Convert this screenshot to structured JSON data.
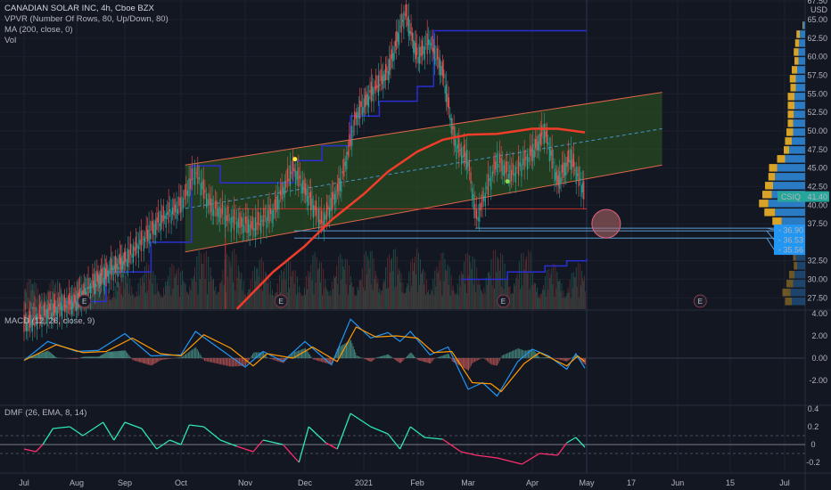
{
  "header": {
    "title": "CANADIAN SOLAR INC, 4h, Cboe BZX",
    "indicators": [
      "VPVR (Number Of Rows, 80, Up/Down, 80)",
      "MA (200, close, 0)",
      "Vol"
    ]
  },
  "colors": {
    "background": "#131722",
    "up": "#26a69a",
    "down": "#ef5350",
    "ma": "#f23c2a",
    "channel_fill": "#2e5b1f",
    "channel_line": "#e0654a",
    "stop_line": "#2a2fd1",
    "macd": "#2196f3",
    "signal": "#ff9800",
    "dmf_pos": "#2ee6b0",
    "dmf_neg": "#ff2e6e",
    "vpvr_up": "#2a7bc4",
    "vpvr_down": "#d8a327",
    "price_badge": "#26a69a",
    "level_badge": "#2196f3"
  },
  "price_axis": {
    "currency": "USD",
    "ticks": [
      "67.50",
      "65.00",
      "62.50",
      "60.00",
      "57.50",
      "55.00",
      "52.50",
      "50.00",
      "47.50",
      "45.00",
      "42.50",
      "40.00",
      "37.50",
      "32.50",
      "30.00",
      "27.50"
    ],
    "last_price": {
      "symbol": "CSIQ",
      "value": "41.40"
    },
    "levels": [
      "36.90",
      "36.53",
      "35.56"
    ]
  },
  "time_axis": {
    "ticks": [
      "Jul",
      "Aug",
      "Sep",
      "Oct",
      "Nov",
      "Dec",
      "2021",
      "Feb",
      "Mar",
      "Apr",
      "May",
      "17",
      "Jun",
      "15",
      "Jul"
    ]
  },
  "earnings_marker": "E",
  "macd_panel": {
    "title": "MACD (12, 26, close, 9)",
    "ticks": [
      "4.00",
      "2.00",
      "0.00",
      "-2.00"
    ]
  },
  "dmf_panel": {
    "title": "DMF (26, EMA, 8, 14)",
    "ticks": [
      "0.4",
      "0.2",
      "0",
      "-0.2"
    ]
  },
  "chart_data": [
    {
      "type": "candlestick",
      "title": "CANADIAN SOLAR INC, 4h, Cboe BZX",
      "ylim": [
        26,
        67.5
      ],
      "xlim": [
        "2020-06-25",
        "2021-07-15"
      ],
      "close": [
        [
          "2020-07-01",
          24
        ],
        [
          "2020-07-15",
          25.5
        ],
        [
          "2020-08-01",
          27
        ],
        [
          "2020-08-15",
          30
        ],
        [
          "2020-09-01",
          32.5
        ],
        [
          "2020-09-10",
          35
        ],
        [
          "2020-09-20",
          38
        ],
        [
          "2020-10-01",
          40
        ],
        [
          "2020-10-08",
          44.5
        ],
        [
          "2020-10-15",
          40
        ],
        [
          "2020-10-25",
          38
        ],
        [
          "2020-11-05",
          37
        ],
        [
          "2020-11-15",
          39
        ],
        [
          "2020-11-25",
          45
        ],
        [
          "2020-12-01",
          42
        ],
        [
          "2020-12-10",
          37.5
        ],
        [
          "2020-12-20",
          43
        ],
        [
          "2020-12-28",
          52
        ],
        [
          "2021-01-05",
          55
        ],
        [
          "2021-01-15",
          58
        ],
        [
          "2021-01-25",
          66
        ],
        [
          "2021-02-01",
          60
        ],
        [
          "2021-02-08",
          62
        ],
        [
          "2021-02-15",
          58
        ],
        [
          "2021-02-22",
          48
        ],
        [
          "2021-03-01",
          46
        ],
        [
          "2021-03-05",
          38
        ],
        [
          "2021-03-15",
          46
        ],
        [
          "2021-03-22",
          44
        ],
        [
          "2021-04-01",
          47
        ],
        [
          "2021-04-08",
          50
        ],
        [
          "2021-04-15",
          43
        ],
        [
          "2021-04-22",
          46.5
        ],
        [
          "2021-04-30",
          41.4
        ]
      ],
      "ma200": [
        [
          "2020-10-28",
          26
        ],
        [
          "2020-11-15",
          31
        ],
        [
          "2020-12-01",
          34.5
        ],
        [
          "2020-12-15",
          38
        ],
        [
          "2021-01-01",
          41.5
        ],
        [
          "2021-01-15",
          44.5
        ],
        [
          "2021-02-01",
          47.2
        ],
        [
          "2021-02-15",
          48.8
        ],
        [
          "2021-03-01",
          49.5
        ],
        [
          "2021-03-15",
          49.6
        ],
        [
          "2021-04-01",
          50.3
        ],
        [
          "2021-04-15",
          50.3
        ],
        [
          "2021-04-30",
          49.8
        ]
      ],
      "channel": {
        "start": "2020-10-03",
        "end": "2021-05-27",
        "lower": [
          33.7,
          45.4
        ],
        "upper": [
          45.4,
          55.2
        ]
      },
      "support_line": {
        "from": "2020-10-28",
        "to": "2021-05-01",
        "price": 39.5
      },
      "stop_line": [
        [
          "2020-07-25",
          27
        ],
        [
          "2020-08-20",
          31
        ],
        [
          "2020-09-15",
          35
        ],
        [
          "2020-10-06",
          45.3
        ],
        [
          "2020-10-20",
          43
        ],
        [
          "2020-11-25",
          46
        ],
        [
          "2020-12-10",
          48
        ],
        [
          "2020-12-25",
          52
        ],
        [
          "2021-01-10",
          54
        ],
        [
          "2021-02-01",
          56
        ],
        [
          "2021-02-10",
          63.5
        ],
        [
          "2021-05-01",
          63.5
        ]
      ],
      "stop_line_low": [
        [
          "2021-02-25",
          30
        ],
        [
          "2021-03-20",
          31
        ],
        [
          "2021-04-08",
          31.8
        ],
        [
          "2021-04-20",
          32.5
        ],
        [
          "2021-05-01",
          32.8
        ]
      ],
      "markers": [
        {
          "date": "2020-11-26",
          "price": 46.2,
          "color": "#ffeb3b"
        },
        {
          "date": "2021-03-20",
          "price": 43.2,
          "color": "#8bd94a"
        }
      ],
      "target_circle": {
        "date": "2021-05-08",
        "price": 37.5
      },
      "earnings": [
        "2020-08-06",
        "2020-11-19",
        "2021-03-18",
        "2021-06-07"
      ],
      "volume_relative": [
        [
          "2020-07",
          0.3
        ],
        [
          "2020-08",
          0.35
        ],
        [
          "2020-09",
          0.45
        ],
        [
          "2020-10",
          0.6
        ],
        [
          "2020-11",
          0.5
        ],
        [
          "2020-12",
          0.55
        ],
        [
          "2021-01",
          0.6
        ],
        [
          "2021-02",
          0.55
        ],
        [
          "2021-03",
          0.6
        ],
        [
          "2021-04",
          0.45
        ]
      ],
      "vpvr": {
        "prices": [
          27,
          28.2,
          29.4,
          30.6,
          31.8,
          33,
          34.2,
          35.4,
          36.6,
          37.8,
          39,
          40.2,
          41.4,
          42.6,
          43.8,
          45,
          46.2,
          47.4,
          48.6,
          49.8,
          51,
          52.2,
          53.4,
          54.6,
          55.8,
          57,
          58.2,
          59.4,
          60.6,
          61.8,
          63,
          64.2
        ],
        "up": [
          20,
          22,
          18,
          16,
          12,
          14,
          18,
          22,
          28,
          35,
          45,
          55,
          50,
          48,
          45,
          42,
          30,
          24,
          20,
          18,
          18,
          17,
          16,
          16,
          14,
          14,
          12,
          10,
          10,
          9,
          8,
          3
        ],
        "down": [
          10,
          12,
          10,
          8,
          5,
          4,
          5,
          8,
          10,
          14,
          16,
          14,
          14,
          12,
          10,
          12,
          12,
          8,
          10,
          10,
          8,
          9,
          10,
          10,
          8,
          9,
          8,
          6,
          7,
          6,
          5,
          1
        ]
      }
    },
    {
      "type": "line",
      "title": "MACD (12, 26, close, 9)",
      "ylim": [
        -4,
        4
      ],
      "series": [
        {
          "values": [
            [
              "2020-07-01",
              -0.2
            ],
            [
              "2020-07-15",
              1.5
            ],
            [
              "2020-08-01",
              0.6
            ],
            [
              "2020-08-15",
              0.7
            ],
            [
              "2020-09-01",
              2.2
            ],
            [
              "2020-09-15",
              0.2
            ],
            [
              "2020-10-01",
              0.3
            ],
            [
              "2020-10-08",
              2.4
            ],
            [
              "2020-10-20",
              0.8
            ],
            [
              "2020-11-01",
              -0.8
            ],
            [
              "2020-11-10",
              0.6
            ],
            [
              "2020-11-20",
              -0.3
            ],
            [
              "2020-12-01",
              1.5
            ],
            [
              "2020-12-15",
              -0.6
            ],
            [
              "2020-12-25",
              3.5
            ],
            [
              "2021-01-05",
              1.8
            ],
            [
              "2021-01-15",
              2.3
            ],
            [
              "2021-01-22",
              1.5
            ],
            [
              "2021-01-28",
              2.4
            ],
            [
              "2021-02-08",
              0.3
            ],
            [
              "2021-02-18",
              1.0
            ],
            [
              "2021-03-01",
              -2.8
            ],
            [
              "2021-03-08",
              -2.2
            ],
            [
              "2021-03-15",
              -3.4
            ],
            [
              "2021-03-25",
              -0.3
            ],
            [
              "2021-04-01",
              0.8
            ],
            [
              "2021-04-10",
              0.2
            ],
            [
              "2021-04-20",
              -1.0
            ],
            [
              "2021-04-25",
              0.4
            ],
            [
              "2021-04-30",
              -0.9
            ]
          ]
        },
        {
          "values": [
            [
              "2020-07-01",
              -0.2
            ],
            [
              "2020-07-20",
              1.2
            ],
            [
              "2020-08-05",
              0.5
            ],
            [
              "2020-08-20",
              0.6
            ],
            [
              "2020-09-05",
              1.8
            ],
            [
              "2020-09-20",
              0.4
            ],
            [
              "2020-10-01",
              0.2
            ],
            [
              "2020-10-12",
              2.1
            ],
            [
              "2020-10-25",
              0.9
            ],
            [
              "2020-11-05",
              -0.7
            ],
            [
              "2020-11-12",
              0.4
            ],
            [
              "2020-11-25",
              0.0
            ],
            [
              "2020-12-05",
              1.0
            ],
            [
              "2020-12-18",
              -0.3
            ],
            [
              "2020-12-28",
              2.8
            ],
            [
              "2021-01-08",
              1.9
            ],
            [
              "2021-01-20",
              2.0
            ],
            [
              "2021-02-01",
              1.8
            ],
            [
              "2021-02-10",
              0.5
            ],
            [
              "2021-02-20",
              0.6
            ],
            [
              "2021-03-03",
              -2.2
            ],
            [
              "2021-03-12",
              -2.3
            ],
            [
              "2021-03-17",
              -3.0
            ],
            [
              "2021-03-28",
              -0.5
            ],
            [
              "2021-04-05",
              0.5
            ],
            [
              "2021-04-20",
              -0.7
            ],
            [
              "2021-04-26",
              0.2
            ],
            [
              "2021-04-30",
              -0.3
            ]
          ]
        }
      ]
    },
    {
      "type": "line",
      "title": "DMF (26, EMA, 8, 14)",
      "ylim": [
        -0.3,
        0.4
      ],
      "bands": [
        0.1,
        0,
        -0.1
      ],
      "values": [
        [
          "2020-07-01",
          -0.05
        ],
        [
          "2020-07-08",
          -0.08
        ],
        [
          "2020-07-12",
          0.0
        ],
        [
          "2020-07-18",
          0.18
        ],
        [
          "2020-07-28",
          0.2
        ],
        [
          "2020-08-05",
          0.1
        ],
        [
          "2020-08-12",
          0.18
        ],
        [
          "2020-08-18",
          0.25
        ],
        [
          "2020-08-25",
          0.05
        ],
        [
          "2020-09-01",
          0.25
        ],
        [
          "2020-09-10",
          0.18
        ],
        [
          "2020-09-18",
          -0.05
        ],
        [
          "2020-09-25",
          0.05
        ],
        [
          "2020-10-01",
          0.0
        ],
        [
          "2020-10-05",
          0.22
        ],
        [
          "2020-10-12",
          0.2
        ],
        [
          "2020-10-20",
          0.05
        ],
        [
          "2020-10-28",
          -0.02
        ],
        [
          "2020-11-05",
          -0.08
        ],
        [
          "2020-11-10",
          0.05
        ],
        [
          "2020-11-20",
          0.0
        ],
        [
          "2020-11-28",
          -0.2
        ],
        [
          "2020-12-03",
          0.2
        ],
        [
          "2020-12-12",
          0.02
        ],
        [
          "2020-12-18",
          -0.05
        ],
        [
          "2020-12-25",
          0.35
        ],
        [
          "2021-01-05",
          0.2
        ],
        [
          "2021-01-15",
          0.12
        ],
        [
          "2021-01-22",
          -0.05
        ],
        [
          "2021-01-28",
          0.2
        ],
        [
          "2021-02-05",
          0.08
        ],
        [
          "2021-02-15",
          0.06
        ],
        [
          "2021-02-25",
          -0.08
        ],
        [
          "2021-03-05",
          -0.12
        ],
        [
          "2021-03-15",
          -0.15
        ],
        [
          "2021-03-27",
          -0.22
        ],
        [
          "2021-04-05",
          -0.1
        ],
        [
          "2021-04-15",
          -0.12
        ],
        [
          "2021-04-20",
          0.02
        ],
        [
          "2021-04-25",
          0.08
        ],
        [
          "2021-04-30",
          -0.03
        ]
      ]
    }
  ]
}
